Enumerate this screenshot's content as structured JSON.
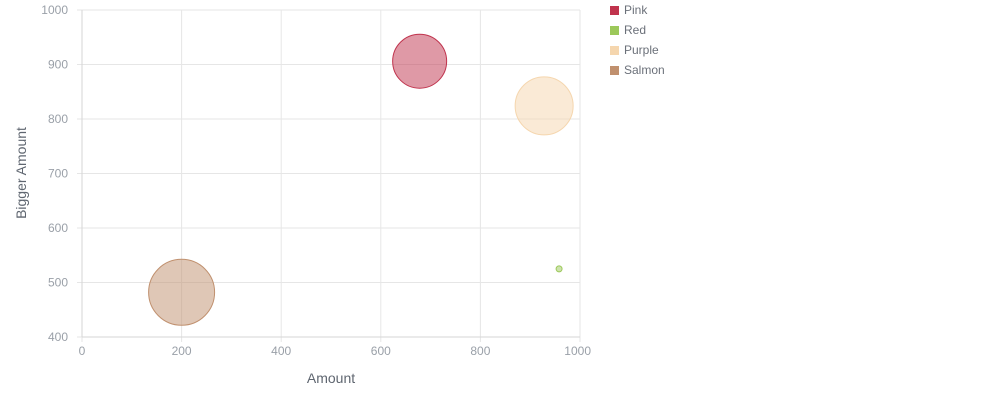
{
  "chart_data": {
    "type": "bubble",
    "title": "",
    "xlabel": "Amount",
    "ylabel": "Bigger Amount",
    "xlim": [
      0,
      1000
    ],
    "ylim": [
      400,
      1000
    ],
    "x_ticks": [
      "0",
      "200",
      "400",
      "600",
      "800",
      "1000"
    ],
    "y_ticks": [
      "400",
      "500",
      "600",
      "700",
      "800",
      "900",
      "1000"
    ],
    "grid": true,
    "legend": "right",
    "series": [
      {
        "name": "Pink",
        "color": "#c0334d",
        "points": [
          {
            "x": 678,
            "y": 906,
            "size": 27
          }
        ]
      },
      {
        "name": "Red",
        "color": "#9cc85a",
        "points": [
          {
            "x": 958,
            "y": 525,
            "size": 3
          }
        ]
      },
      {
        "name": "Purple",
        "color": "#f5d6ae",
        "points": [
          {
            "x": 928,
            "y": 824,
            "size": 29
          }
        ]
      },
      {
        "name": "Salmon",
        "color": "#c0906e",
        "points": [
          {
            "x": 200,
            "y": 482,
            "size": 33
          }
        ]
      }
    ]
  }
}
